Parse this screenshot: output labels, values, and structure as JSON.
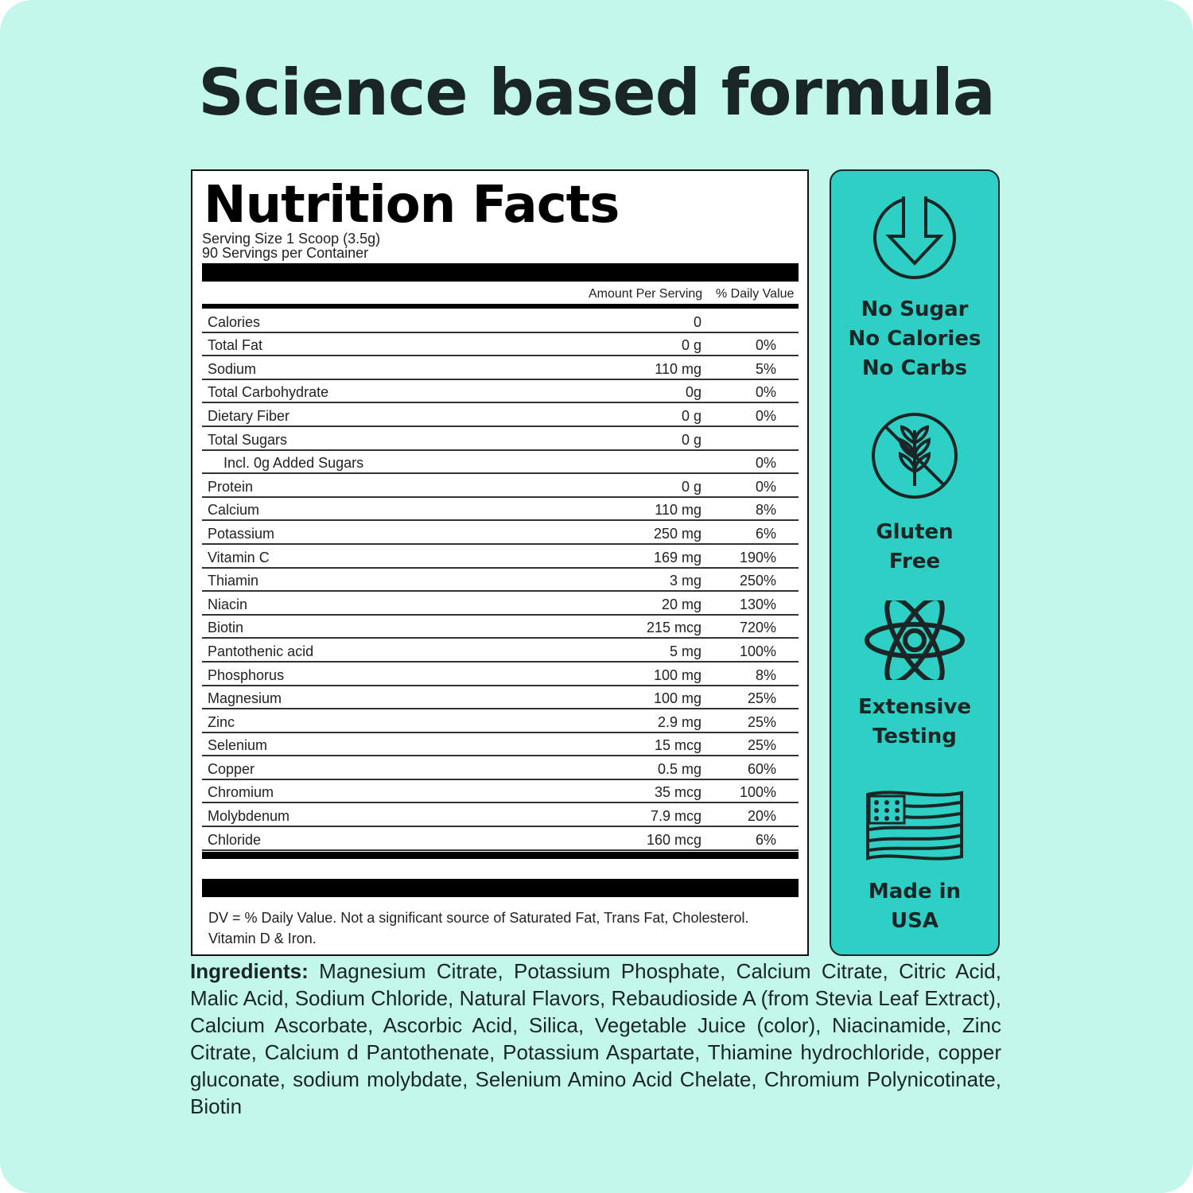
{
  "title": "Science based formula",
  "label": {
    "heading": "Nutrition Facts",
    "serving_size": "Serving Size 1 Scoop (3.5g)",
    "servings": "90 Servings per Container",
    "col_amount": "Amount Per Serving",
    "col_dv": "% Daily Value",
    "rows": [
      {
        "name": "Calories",
        "amount": "0",
        "dv": ""
      },
      {
        "name": "Total Fat",
        "amount": "0 g",
        "dv": "0%"
      },
      {
        "name": "Sodium",
        "amount": "110 mg",
        "dv": "5%"
      },
      {
        "name": "Total Carbohydrate",
        "amount": "0g",
        "dv": "0%"
      },
      {
        "name": "Dietary Fiber",
        "amount": "0 g",
        "dv": "0%"
      },
      {
        "name": "Total Sugars",
        "amount": "0 g",
        "dv": ""
      },
      {
        "name": "Incl. 0g Added Sugars",
        "amount": "",
        "dv": "0%"
      },
      {
        "name": "Protein",
        "amount": "0 g",
        "dv": "0%"
      },
      {
        "name": "Calcium",
        "amount": "110 mg",
        "dv": "8%"
      },
      {
        "name": "Potassium",
        "amount": "250 mg",
        "dv": "6%"
      },
      {
        "name": "Vitamin C",
        "amount": "169 mg",
        "dv": "190%"
      },
      {
        "name": "Thiamin",
        "amount": "3 mg",
        "dv": "250%"
      },
      {
        "name": "Niacin",
        "amount": "20 mg",
        "dv": "130%"
      },
      {
        "name": "Biotin",
        "amount": "215 mcg",
        "dv": "720%"
      },
      {
        "name": "Pantothenic acid",
        "amount": "5 mg",
        "dv": "100%"
      },
      {
        "name": "Phosphorus",
        "amount": "100 mg",
        "dv": "8%"
      },
      {
        "name": "Magnesium",
        "amount": "100 mg",
        "dv": "25%"
      },
      {
        "name": "Zinc",
        "amount": "2.9 mg",
        "dv": "25%"
      },
      {
        "name": "Selenium",
        "amount": "15 mcg",
        "dv": "25%"
      },
      {
        "name": "Copper",
        "amount": "0.5 mg",
        "dv": "60%"
      },
      {
        "name": "Chromium",
        "amount": "35 mcg",
        "dv": "100%"
      },
      {
        "name": "Molybdenum",
        "amount": "7.9 mcg",
        "dv": "20%"
      },
      {
        "name": "Chloride",
        "amount": "160 mcg",
        "dv": "6%"
      }
    ],
    "note": "DV = % Daily Value. Not a significant source of Saturated Fat, Trans Fat, Cholesterol. Vitamin D & Iron."
  },
  "features": [
    {
      "icon": "down-arrow-circle-icon",
      "lines": [
        "No Sugar",
        "No Calories",
        "No Carbs"
      ]
    },
    {
      "icon": "wheat-crossed-icon",
      "lines": [
        "Gluten",
        "Free"
      ]
    },
    {
      "icon": "atom-icon",
      "lines": [
        "Extensive",
        "Testing"
      ]
    },
    {
      "icon": "usa-flag-icon",
      "lines": [
        "Made in",
        "USA"
      ]
    }
  ],
  "ingredients": {
    "label": "Ingredients:",
    "text": "Magnesium Citrate, Potassium Phosphate, Calcium Citrate, Citric Acid, Malic Acid, Sodium Chloride, Natural Flavors, Rebaudioside A (from Stevia Leaf Extract), Calcium Ascorbate, Ascorbic Acid, Silica, Vegetable Juice (color), Niacinamide, Zinc Citrate, Calcium d Pantothenate, Potassium Aspartate, Thiamine hydrochloride, copper gluconate, sodium molybdate, Selenium Amino Acid Chelate, Chromium Polynicotinate, Biotin"
  },
  "colors": {
    "background": "#c4f7ec",
    "panel": "#2ecfc4",
    "text": "#1a2626"
  }
}
